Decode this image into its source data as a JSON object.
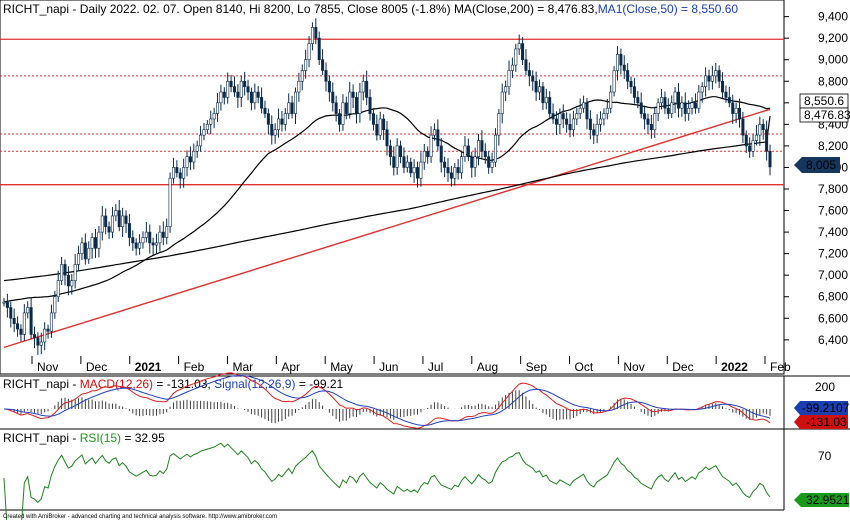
{
  "chart_data": {
    "type": "line",
    "symbol": "RICHT_napi",
    "header": {
      "prefix": "RICHT_napi - Daily 2022. 02. 07. Open 8140, Hi 8200, Lo 7855, Close 8005 (-1.8%) ",
      "ma200": "MA(Close,200) = 8,476.83,",
      "ma50": "MA1(Close,50) = 8,550.60"
    },
    "price_panel": {
      "ylim": [
        6250,
        9480
      ],
      "y_ticks": [
        "9,400",
        "9,200",
        "9,000",
        "8,800",
        "8,600",
        "8,400",
        "8,200",
        "8,000",
        "7,800",
        "7,600",
        "7,400",
        "7,200",
        "7,000",
        "6,800",
        "6,600",
        "6,400"
      ],
      "y_tick_values": [
        9400,
        9200,
        9000,
        8800,
        8600,
        8400,
        8200,
        8000,
        7800,
        7600,
        7400,
        7200,
        7000,
        6800,
        6600,
        6400
      ],
      "x_labels": [
        "Nov",
        "Dec",
        "2021",
        "Feb",
        "Mar",
        "Apr",
        "May",
        "Jun",
        "Jul",
        "Aug",
        "Sep",
        "Oct",
        "Nov",
        "Dec",
        "2022",
        "Feb"
      ],
      "horizontal_levels": [
        9190,
        8850,
        8310,
        8150,
        7840
      ],
      "trendline": {
        "start": 6330,
        "end": 8540
      },
      "close": [
        6750,
        6700,
        6600,
        6550,
        6500,
        6450,
        6650,
        6700,
        6450,
        6420,
        6350,
        6380,
        6500,
        6480,
        6650,
        6800,
        6950,
        7100,
        7000,
        6900,
        6950,
        7100,
        7200,
        7300,
        7150,
        7250,
        7350,
        7250,
        7400,
        7550,
        7450,
        7400,
        7550,
        7600,
        7450,
        7550,
        7480,
        7350,
        7300,
        7250,
        7300,
        7350,
        7400,
        7300,
        7280,
        7300,
        7400,
        7350,
        7450,
        7900,
        8000,
        7950,
        7900,
        8000,
        8100,
        8050,
        8150,
        8200,
        8300,
        8350,
        8400,
        8450,
        8500,
        8600,
        8700,
        8650,
        8800,
        8750,
        8700,
        8650,
        8800,
        8750,
        8700,
        8600,
        8700,
        8650,
        8550,
        8500,
        8400,
        8300,
        8350,
        8450,
        8400,
        8500,
        8600,
        8500,
        8700,
        8800,
        8900,
        9000,
        9150,
        9300,
        9200,
        9000,
        8900,
        8800,
        8700,
        8600,
        8500,
        8400,
        8600,
        8500,
        8700,
        8650,
        8500,
        8700,
        8800,
        8650,
        8500,
        8400,
        8300,
        8450,
        8350,
        8200,
        8100,
        8000,
        8200,
        8100,
        8000,
        8050,
        7950,
        8000,
        7900,
        8050,
        8150,
        8100,
        8300,
        8350,
        8200,
        8050,
        8000,
        7950,
        7900,
        8000,
        7950,
        8100,
        8200,
        8100,
        8000,
        8100,
        8250,
        8150,
        8100,
        8000,
        8050,
        8300,
        8500,
        8700,
        8750,
        8900,
        8950,
        9100,
        9150,
        9000,
        8900,
        8850,
        8800,
        8700,
        8750,
        8600,
        8650,
        8500,
        8450,
        8400,
        8500,
        8450,
        8400,
        8350,
        8450,
        8500,
        8550,
        8600,
        8450,
        8350,
        8300,
        8400,
        8450,
        8500,
        8550,
        8700,
        8900,
        9050,
        8950,
        8900,
        8800,
        8750,
        8650,
        8600,
        8500,
        8450,
        8400,
        8350,
        8500,
        8600,
        8650,
        8550,
        8500,
        8600,
        8700,
        8550,
        8600,
        8500,
        8550,
        8600,
        8550,
        8700,
        8750,
        8850,
        8800,
        8850,
        8900,
        8800,
        8700,
        8650,
        8600,
        8500,
        8550,
        8450,
        8300,
        8200,
        8150,
        8250,
        8300,
        8400,
        8350,
        8150,
        8005
      ],
      "ma200_start": 6950,
      "ma200_end": 8476.83,
      "ma50_start": 6750,
      "ma50_end": 8550.6,
      "ma200_label": "8,476.83",
      "ma50_label": "8,550.6",
      "close_label": "8,005"
    },
    "macd_panel": {
      "title_prefix": "RICHT_napi - ",
      "macd_label": "MACD(12,26)",
      "macd_value": " = -131.03, ",
      "signal_label": "Signal(12,26,9)",
      "signal_value": " = -99.21",
      "y_tick": "200",
      "signal_badge": "-99.2107",
      "macd_badge": "-131.03"
    },
    "rsi_panel": {
      "title_prefix": "RICHT_napi - ",
      "rsi_label": "RSI(15)",
      "rsi_value": " = 32.95",
      "y_tick": "70",
      "badge": "32.9521"
    },
    "colors": {
      "price": "#0b2a4a",
      "level": "#e03030",
      "ma": "#000000",
      "macd": "#e02020",
      "signal": "#2040c0",
      "rsi": "#208020",
      "histogram": "#404040",
      "close_badge": "#17365d",
      "signal_badge": "#1a3fb0",
      "macd_badge": "#d01010",
      "rsi_badge": "#1a9a1a"
    },
    "footer": "Created with AmiBroker - advanced charting and technical analysis software. http://www.amibroker.com"
  }
}
